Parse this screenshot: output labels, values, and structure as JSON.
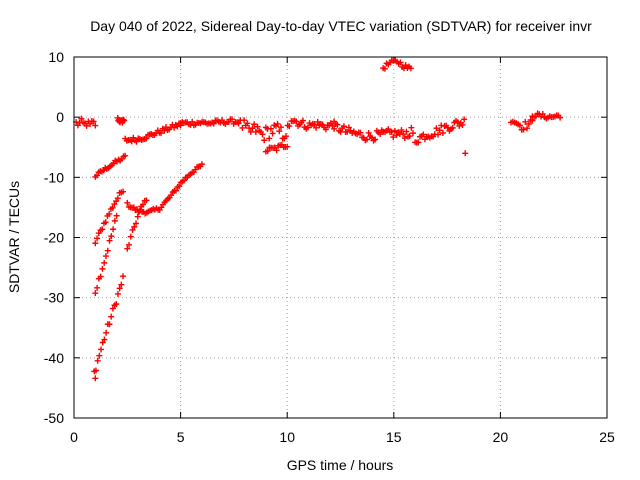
{
  "chart_data": {
    "type": "scatter",
    "title": "Day 040 of 2022, Sidereal Day-to-day VTEC variation (SDTVAR) for receiver invr",
    "xlabel": "GPS time / hours",
    "ylabel": "SDTVAR / TECUs",
    "xlim": [
      0,
      25
    ],
    "ylim": [
      -50,
      10
    ],
    "x_ticks": [
      0,
      5,
      10,
      15,
      20,
      25
    ],
    "y_ticks": [
      10,
      0,
      -10,
      -20,
      -30,
      -40,
      -50
    ],
    "grid": true,
    "marker": "+",
    "color": "#ff0000",
    "series": [
      {
        "name": "SDTVAR",
        "segments": [
          {
            "x0": 0.1,
            "x1": 1.0,
            "y": [
              -1.0,
              -1.2,
              -0.8,
              -1.3,
              -1.0,
              -1.4,
              -0.9,
              -1.2
            ],
            "jitter": 0.6
          },
          {
            "x0": 2.05,
            "x1": 2.35,
            "y": [
              -0.3,
              -0.8,
              -0.5
            ],
            "jitter": 0.3
          },
          {
            "x0": 1.0,
            "x1": 2.4,
            "y": [
              -9.8,
              -8.6,
              -7.5,
              -6.6
            ],
            "jitter": 0.3
          },
          {
            "x0": 1.0,
            "x1": 2.3,
            "y": [
              -20.8,
              -17.5,
              -14.5,
              -12.0
            ],
            "jitter": 0.4
          },
          {
            "x0": 1.0,
            "x1": 2.0,
            "y": [
              -29.0,
              -23.0,
              -16.5
            ],
            "jitter": 0.5
          },
          {
            "x0": 0.95,
            "x1": 2.3,
            "y": [
              -42.5,
              -37.0,
              -32.0,
              -26.8
            ],
            "jitter": 0.6
          },
          {
            "x0": 2.5,
            "x1": 3.4,
            "y": [
              -22.0,
              -18.5,
              -15.5,
              -13.5
            ],
            "jitter": 0.4
          },
          {
            "x0": 2.5,
            "x1": 6.0,
            "y": [
              -14.5,
              -15.6,
              -15.8,
              -15.2,
              -13.3,
              -11.0,
              -9.2,
              -8.0
            ],
            "jitter": 0.3
          },
          {
            "x0": 2.4,
            "x1": 5.0,
            "y": [
              -3.8,
              -3.7,
              -3.2,
              -2.5,
              -1.8,
              -1.2
            ],
            "jitter": 0.4
          },
          {
            "x0": 5.0,
            "x1": 7.8,
            "y": [
              -1.0,
              -1.0,
              -0.9,
              -1.0,
              -0.8,
              -0.7,
              -0.8
            ],
            "jitter": 0.4
          },
          {
            "x0": 7.9,
            "x1": 10.1,
            "y": [
              -1.3,
              -2.5,
              -2.0,
              -3.0,
              -2.4,
              -2.0,
              -2.8,
              -2.2
            ],
            "jitter": 1.2
          },
          {
            "x0": 9.0,
            "x1": 10.0,
            "y": [
              -5.5,
              -5.2,
              -4.5
            ],
            "jitter": 0.5
          },
          {
            "x0": 10.2,
            "x1": 12.2,
            "y": [
              -0.3,
              -1.0,
              -1.4,
              -1.2,
              -1.5,
              -1.3
            ],
            "jitter": 0.7
          },
          {
            "x0": 12.2,
            "x1": 15.9,
            "y": [
              -1.5,
              -2.3,
              -2.8,
              -3.2,
              -3.0,
              -2.7,
              -2.8,
              -2.5
            ],
            "jitter": 0.8
          },
          {
            "x0": 14.5,
            "x1": 15.8,
            "y": [
              8.2,
              9.0,
              9.3,
              8.5,
              8.0
            ],
            "jitter": 0.4
          },
          {
            "x0": 16.0,
            "x1": 18.3,
            "y": [
              -3.8,
              -3.0,
              -2.5,
              -1.8,
              -1.2,
              -0.8
            ],
            "jitter": 0.8
          },
          {
            "x0": 20.5,
            "x1": 21.5,
            "y": [
              -0.2,
              -1.5,
              -1.0
            ],
            "jitter": 0.7
          },
          {
            "x0": 21.5,
            "x1": 22.8,
            "y": [
              0.4,
              0.2,
              0.0,
              0.3
            ],
            "jitter": 0.4
          },
          {
            "x0": 18.35,
            "x1": 18.35,
            "y": [
              -6.0
            ],
            "jitter": 0.0
          },
          {
            "x0": 1.0,
            "x1": 1.0,
            "y": [
              -43.4
            ],
            "jitter": 0.0
          }
        ]
      }
    ]
  }
}
